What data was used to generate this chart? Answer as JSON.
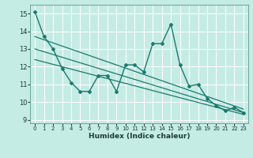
{
  "title": "",
  "xlabel": "Humidex (Indice chaleur)",
  "bg_color": "#c5ece4",
  "line_color": "#1a7a6e",
  "grid_color": "#ffffff",
  "xlim": [
    -0.5,
    23.5
  ],
  "ylim": [
    8.8,
    15.5
  ],
  "yticks": [
    9,
    10,
    11,
    12,
    13,
    14,
    15
  ],
  "xticks": [
    0,
    1,
    2,
    3,
    4,
    5,
    6,
    7,
    8,
    9,
    10,
    11,
    12,
    13,
    14,
    15,
    16,
    17,
    18,
    19,
    20,
    21,
    22,
    23
  ],
  "main_line_x": [
    0,
    1,
    2,
    3,
    4,
    5,
    6,
    7,
    8,
    9,
    10,
    11,
    12,
    13,
    14,
    15,
    16,
    17,
    18,
    19,
    20,
    21,
    22,
    23
  ],
  "main_line_y": [
    15.1,
    13.7,
    13.0,
    11.9,
    11.1,
    10.6,
    10.6,
    11.5,
    11.5,
    10.6,
    12.1,
    12.1,
    11.7,
    13.3,
    13.3,
    14.4,
    12.1,
    10.9,
    11.0,
    10.2,
    9.8,
    9.5,
    9.7,
    9.4
  ],
  "trend1_x": [
    0,
    23
  ],
  "trend1_y": [
    13.7,
    9.6
  ],
  "trend2_x": [
    0,
    23
  ],
  "trend2_y": [
    13.0,
    9.4
  ],
  "trend3_x": [
    0,
    23
  ],
  "trend3_y": [
    12.4,
    9.3
  ]
}
